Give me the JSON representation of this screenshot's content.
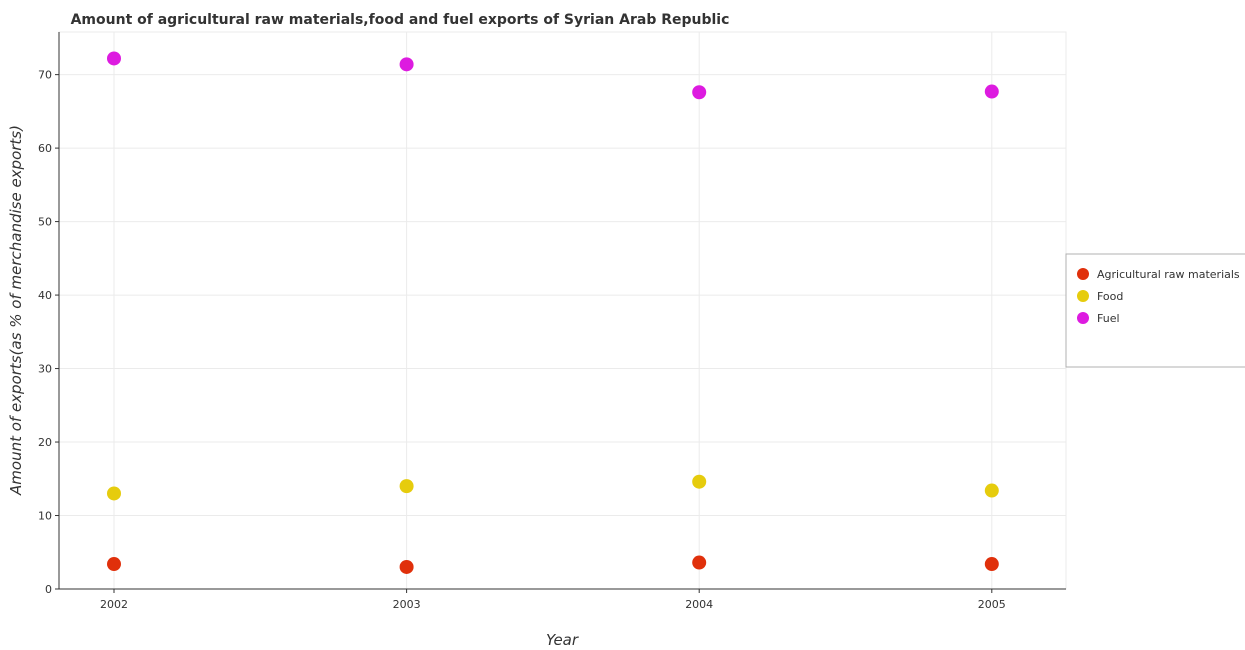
{
  "chart_data": {
    "type": "scatter",
    "title": "Amount of agricultural raw materials,food and fuel exports of Syrian Arab Republic",
    "xlabel": "Year",
    "ylabel": "Amount of exports(as % of merchandise exports)",
    "categories": [
      "2002",
      "2003",
      "2004",
      "2005"
    ],
    "ylim": [
      0,
      75.8
    ],
    "yticks": [
      "0",
      "10",
      "20",
      "30",
      "40",
      "50",
      "60",
      "70"
    ],
    "grid": true,
    "legend_position": "right",
    "series": [
      {
        "name": "Agricultural raw materials",
        "color": "#e0300b",
        "values": [
          3.4,
          3.0,
          3.6,
          3.4
        ]
      },
      {
        "name": "Food",
        "color": "#e6cc0d",
        "values": [
          13.0,
          14.0,
          14.6,
          13.4
        ]
      },
      {
        "name": "Fuel",
        "color": "#dd1be0",
        "values": [
          72.2,
          71.4,
          67.6,
          67.7
        ]
      }
    ]
  }
}
